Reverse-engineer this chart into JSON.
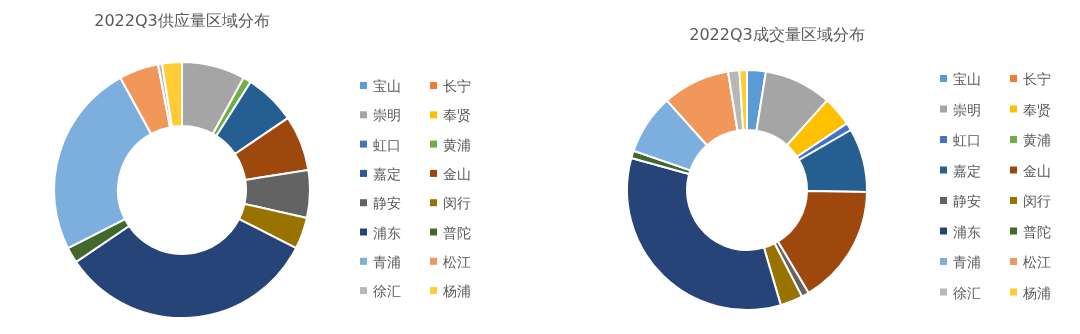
{
  "chart_data": [
    {
      "type": "donut",
      "title": "2022Q3供应量区域分布",
      "categories": [
        "宝山",
        "长宁",
        "崇明",
        "奉贤",
        "虹口",
        "黄浦",
        "嘉定",
        "金山",
        "静安",
        "闵行",
        "浦东",
        "普陀",
        "青浦",
        "松江",
        "徐汇",
        "杨浦"
      ],
      "values": [
        0,
        0,
        8,
        0,
        0,
        1,
        6.5,
        7,
        6,
        4,
        33,
        2,
        24.5,
        5,
        0.5,
        2.5
      ],
      "colors": [
        "#5b9bd5",
        "#ed7d31",
        "#a5a5a5",
        "#ffc000",
        "#4472c4",
        "#70ad47",
        "#255e91",
        "#9e480e",
        "#636363",
        "#997300",
        "#264478",
        "#43682b",
        "#7cafdd",
        "#f1975a",
        "#b7b7b7",
        "#ffcd33"
      ],
      "legend": "right"
    },
    {
      "type": "donut",
      "title": "2022Q3成交量区域分布",
      "categories": [
        "宝山",
        "长宁",
        "崇明",
        "奉贤",
        "虹口",
        "黄浦",
        "嘉定",
        "金山",
        "静安",
        "闵行",
        "浦东",
        "普陀",
        "青浦",
        "松江",
        "徐汇",
        "杨浦"
      ],
      "values": [
        2.5,
        0,
        9,
        4,
        1,
        0,
        8.5,
        16,
        1,
        3,
        33.5,
        1,
        8,
        9,
        1.5,
        1
      ],
      "colors": [
        "#5b9bd5",
        "#ed7d31",
        "#a5a5a5",
        "#ffc000",
        "#4472c4",
        "#70ad47",
        "#255e91",
        "#9e480e",
        "#636363",
        "#997300",
        "#264478",
        "#43682b",
        "#7cafdd",
        "#f1975a",
        "#b7b7b7",
        "#ffcd33"
      ],
      "legend": "right"
    }
  ]
}
